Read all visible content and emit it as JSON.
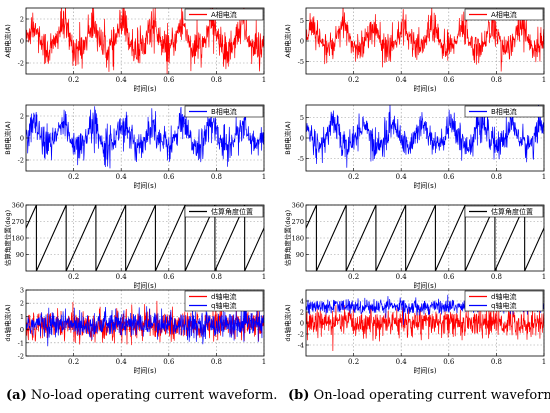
{
  "figure": {
    "captions": [
      {
        "tag": "(a)",
        "text": "No-load operating current waveform."
      },
      {
        "tag": "(b)",
        "text": "On-load operating current waveform."
      }
    ]
  },
  "chart_data": [
    {
      "id": "a1",
      "type": "line",
      "panel": "a",
      "xlabel": "时间(s)",
      "ylabel": "A相电流(A)",
      "xlim": [
        0,
        1
      ],
      "ylim": [
        -3,
        3
      ],
      "xticks": [
        "0.2",
        "0.4",
        "0.6",
        "0.8",
        "1"
      ],
      "yticks": [
        "-2",
        "0",
        "2"
      ],
      "grid": true,
      "legend_position": "top-right",
      "series": [
        {
          "name": "A相电流",
          "color": "#ff0000",
          "amplitude": 1.5,
          "noise": 0.9,
          "offset": 0,
          "cycles": 8
        }
      ]
    },
    {
      "id": "a2",
      "type": "line",
      "panel": "a",
      "xlabel": "时间(s)",
      "ylabel": "B相电流(A)",
      "xlim": [
        0,
        1
      ],
      "ylim": [
        -3,
        3
      ],
      "xticks": [
        "0.2",
        "0.4",
        "0.6",
        "0.8",
        "1"
      ],
      "yticks": [
        "-2",
        "0",
        "2"
      ],
      "grid": true,
      "legend_position": "top-right",
      "series": [
        {
          "name": "B相电流",
          "color": "#0000ff",
          "amplitude": 1.2,
          "noise": 0.8,
          "offset": 0,
          "cycles": 8
        }
      ]
    },
    {
      "id": "a3",
      "type": "line",
      "panel": "a",
      "xlabel": "时间(s)",
      "ylabel": "估算角度位置(deg)",
      "xlim": [
        0,
        1
      ],
      "ylim": [
        0,
        360
      ],
      "xticks": [
        "0.2",
        "0.4",
        "0.6",
        "0.8",
        "1"
      ],
      "yticks": [
        "90",
        "180",
        "270",
        "360"
      ],
      "grid": true,
      "legend_position": "top-right",
      "series": [
        {
          "name": "估算角度位置",
          "color": "#000000",
          "sawtooth_periods": 8
        }
      ]
    },
    {
      "id": "a4",
      "type": "line",
      "panel": "a",
      "xlabel": "时间(s)",
      "ylabel": "dq轴电流(A)",
      "xlim": [
        0,
        1
      ],
      "ylim": [
        -2,
        3
      ],
      "xticks": [
        "0.2",
        "0.4",
        "0.6",
        "0.8",
        "1"
      ],
      "yticks": [
        "-2",
        "-1",
        "0",
        "1",
        "2",
        "3"
      ],
      "grid": true,
      "legend_position": "top-right",
      "series": [
        {
          "name": "d轴电流",
          "color": "#ff0000",
          "mean": 0.3,
          "noise": 0.55
        },
        {
          "name": "q轴电流",
          "color": "#0000ff",
          "mean": 0.4,
          "noise": 0.5
        }
      ]
    },
    {
      "id": "b1",
      "type": "line",
      "panel": "b",
      "xlabel": "时间(s)",
      "ylabel": "A相电流(A)",
      "xlim": [
        0,
        1
      ],
      "ylim": [
        -8,
        8
      ],
      "xticks": [
        "0.2",
        "0.4",
        "0.6",
        "0.8",
        "1"
      ],
      "yticks": [
        "-5",
        "0",
        "5"
      ],
      "grid": true,
      "legend_position": "top-right",
      "series": [
        {
          "name": "A相电流",
          "color": "#ff0000",
          "amplitude": 3.5,
          "noise": 2.0,
          "offset": 0,
          "cycles": 8
        }
      ]
    },
    {
      "id": "b2",
      "type": "line",
      "panel": "b",
      "xlabel": "时间(s)",
      "ylabel": "B相电流(A)",
      "xlim": [
        0,
        1
      ],
      "ylim": [
        -8,
        8
      ],
      "xticks": [
        "0.2",
        "0.4",
        "0.6",
        "0.8",
        "1"
      ],
      "yticks": [
        "-5",
        "0",
        "5"
      ],
      "grid": true,
      "legend_position": "top-right",
      "series": [
        {
          "name": "B相电流",
          "color": "#0000ff",
          "amplitude": 3.5,
          "noise": 2.0,
          "offset": 0,
          "cycles": 8,
          "phase": 2.1
        }
      ]
    },
    {
      "id": "b3",
      "type": "line",
      "panel": "b",
      "xlabel": "时间(s)",
      "ylabel": "估算角度位置(deg)",
      "xlim": [
        0,
        1
      ],
      "ylim": [
        0,
        360
      ],
      "xticks": [
        "0.2",
        "0.4",
        "0.6",
        "0.8",
        "1"
      ],
      "yticks": [
        "90",
        "180",
        "270",
        "360"
      ],
      "grid": true,
      "legend_position": "top-right",
      "series": [
        {
          "name": "估算角度位置",
          "color": "#000000",
          "sawtooth_periods": 8
        }
      ]
    },
    {
      "id": "b4",
      "type": "line",
      "panel": "b",
      "xlabel": "时间(s)",
      "ylabel": "dq轴电流(A)",
      "xlim": [
        0,
        1
      ],
      "ylim": [
        -6,
        6
      ],
      "xticks": [
        "0.2",
        "0.4",
        "0.6",
        "0.8",
        "1"
      ],
      "yticks": [
        "-4",
        "-2",
        "0",
        "2",
        "4"
      ],
      "grid": true,
      "legend_position": "top-right",
      "series": [
        {
          "name": "d轴电流",
          "color": "#ff0000",
          "mean": 0.0,
          "noise": 1.3
        },
        {
          "name": "q轴电流",
          "color": "#0000ff",
          "mean": 3.0,
          "noise": 0.7
        }
      ]
    }
  ]
}
